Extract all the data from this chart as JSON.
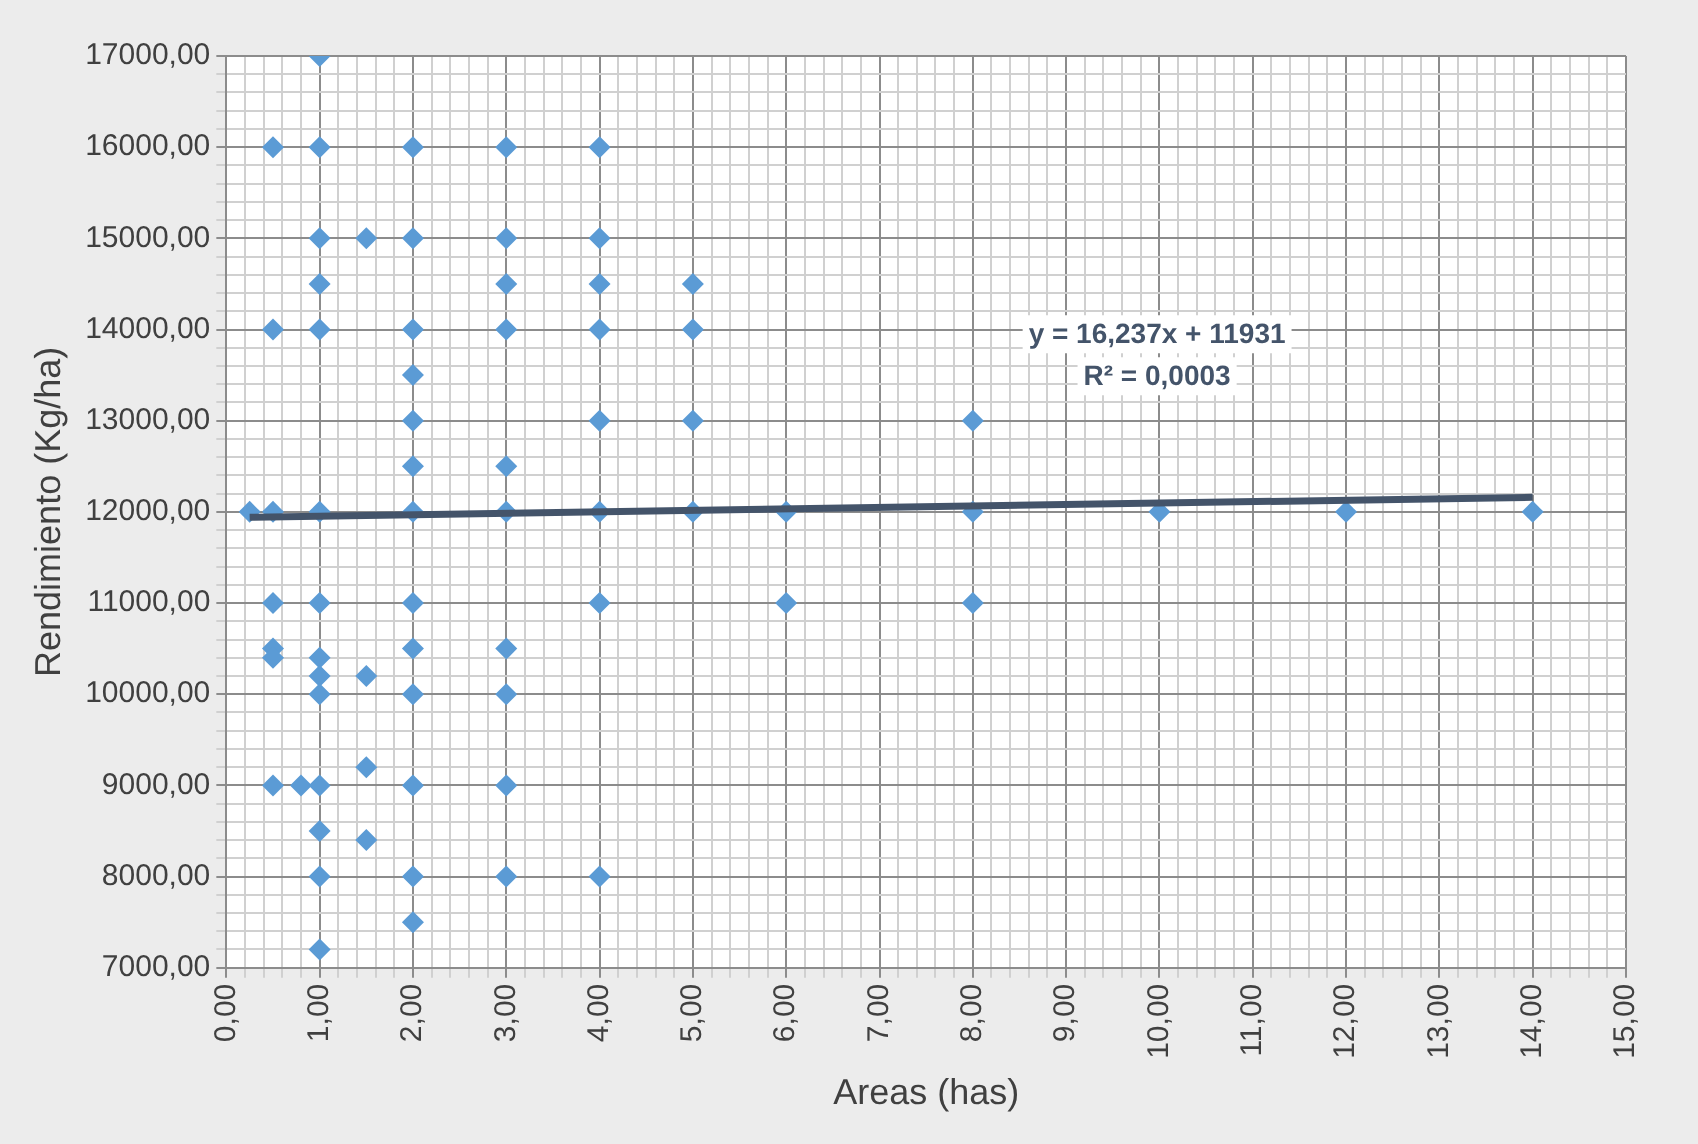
{
  "chart_data": {
    "type": "scatter",
    "xlabel": "Areas (has)",
    "ylabel": "Rendimiento (Kg/ha)",
    "marker": "diamond",
    "grid": true,
    "legend": false,
    "annotations": [
      "y = 16,237x + 11931",
      "R² = 0,0003"
    ],
    "xlim": [
      0,
      15
    ],
    "ylim": [
      7000,
      17000
    ],
    "xticks": [
      {
        "value": 0,
        "label": "0,00"
      },
      {
        "value": 0.2,
        "label": null
      },
      {
        "value": 0.4,
        "label": null
      },
      {
        "value": 0.6,
        "label": null
      },
      {
        "value": 0.8,
        "label": null
      },
      {
        "value": 1,
        "label": "1,00"
      },
      {
        "value": 1.2,
        "label": null
      },
      {
        "value": 1.4,
        "label": null
      },
      {
        "value": 1.6,
        "label": null
      },
      {
        "value": 1.8,
        "label": null
      },
      {
        "value": 2,
        "label": "2,00"
      },
      {
        "value": 2.2,
        "label": null
      },
      {
        "value": 2.4,
        "label": null
      },
      {
        "value": 2.6,
        "label": null
      },
      {
        "value": 2.8,
        "label": null
      },
      {
        "value": 3,
        "label": "3,00"
      },
      {
        "value": 3.2,
        "label": null
      },
      {
        "value": 3.4,
        "label": null
      },
      {
        "value": 3.6,
        "label": null
      },
      {
        "value": 3.8,
        "label": null
      },
      {
        "value": 4,
        "label": "4,00"
      },
      {
        "value": 4.2,
        "label": null
      },
      {
        "value": 4.4,
        "label": null
      },
      {
        "value": 4.6,
        "label": null
      },
      {
        "value": 4.8,
        "label": null
      },
      {
        "value": 5,
        "label": "5,00"
      },
      {
        "value": 5.2,
        "label": null
      },
      {
        "value": 5.4,
        "label": null
      },
      {
        "value": 5.6,
        "label": null
      },
      {
        "value": 5.8,
        "label": null
      },
      {
        "value": 6,
        "label": "6,00"
      },
      {
        "value": 6.2,
        "label": null
      },
      {
        "value": 6.4,
        "label": null
      },
      {
        "value": 6.6,
        "label": null
      },
      {
        "value": 6.8,
        "label": null
      },
      {
        "value": 7,
        "label": "7,00"
      },
      {
        "value": 7.2,
        "label": null
      },
      {
        "value": 7.4,
        "label": null
      },
      {
        "value": 7.6,
        "label": null
      },
      {
        "value": 7.8,
        "label": null
      },
      {
        "value": 8,
        "label": "8,00"
      },
      {
        "value": 8.2,
        "label": null
      },
      {
        "value": 8.4,
        "label": null
      },
      {
        "value": 8.6,
        "label": null
      },
      {
        "value": 8.8,
        "label": null
      },
      {
        "value": 9,
        "label": "9,00"
      },
      {
        "value": 9.2,
        "label": null
      },
      {
        "value": 9.4,
        "label": null
      },
      {
        "value": 9.6,
        "label": null
      },
      {
        "value": 9.8,
        "label": null
      },
      {
        "value": 10,
        "label": "10,00"
      },
      {
        "value": 10.2,
        "label": null
      },
      {
        "value": 10.4,
        "label": null
      },
      {
        "value": 10.6,
        "label": null
      },
      {
        "value": 10.8,
        "label": null
      },
      {
        "value": 11,
        "label": "11,00"
      },
      {
        "value": 11.2,
        "label": null
      },
      {
        "value": 11.4,
        "label": null
      },
      {
        "value": 11.6,
        "label": null
      },
      {
        "value": 11.8,
        "label": null
      },
      {
        "value": 12,
        "label": "12,00"
      },
      {
        "value": 12.2,
        "label": null
      },
      {
        "value": 12.4,
        "label": null
      },
      {
        "value": 12.6,
        "label": null
      },
      {
        "value": 12.8,
        "label": null
      },
      {
        "value": 13,
        "label": "13,00"
      },
      {
        "value": 13.2,
        "label": null
      },
      {
        "value": 13.4,
        "label": null
      },
      {
        "value": 13.6,
        "label": null
      },
      {
        "value": 13.8,
        "label": null
      },
      {
        "value": 14,
        "label": "14,00"
      },
      {
        "value": 14.2,
        "label": null
      },
      {
        "value": 14.4,
        "label": null
      },
      {
        "value": 14.6,
        "label": null
      },
      {
        "value": 14.8,
        "label": null
      },
      {
        "value": 15,
        "label": "15,00"
      }
    ],
    "yticks": [
      {
        "value": 7000,
        "label": "7000,00"
      },
      {
        "value": 7200,
        "label": null
      },
      {
        "value": 7400,
        "label": null
      },
      {
        "value": 7600,
        "label": null
      },
      {
        "value": 7800,
        "label": null
      },
      {
        "value": 8000,
        "label": "8000,00"
      },
      {
        "value": 8200,
        "label": null
      },
      {
        "value": 8400,
        "label": null
      },
      {
        "value": 8600,
        "label": null
      },
      {
        "value": 8800,
        "label": null
      },
      {
        "value": 9000,
        "label": "9000,00"
      },
      {
        "value": 9200,
        "label": null
      },
      {
        "value": 9400,
        "label": null
      },
      {
        "value": 9600,
        "label": null
      },
      {
        "value": 9800,
        "label": null
      },
      {
        "value": 10000,
        "label": "10000,00"
      },
      {
        "value": 10200,
        "label": null
      },
      {
        "value": 10400,
        "label": null
      },
      {
        "value": 10600,
        "label": null
      },
      {
        "value": 10800,
        "label": null
      },
      {
        "value": 11000,
        "label": "11000,00"
      },
      {
        "value": 11200,
        "label": null
      },
      {
        "value": 11400,
        "label": null
      },
      {
        "value": 11600,
        "label": null
      },
      {
        "value": 11800,
        "label": null
      },
      {
        "value": 12000,
        "label": "12000,00"
      },
      {
        "value": 12200,
        "label": null
      },
      {
        "value": 12400,
        "label": null
      },
      {
        "value": 12600,
        "label": null
      },
      {
        "value": 12800,
        "label": null
      },
      {
        "value": 13000,
        "label": "13000,00"
      },
      {
        "value": 13200,
        "label": null
      },
      {
        "value": 13400,
        "label": null
      },
      {
        "value": 13600,
        "label": null
      },
      {
        "value": 13800,
        "label": null
      },
      {
        "value": 14000,
        "label": "14000,00"
      },
      {
        "value": 14200,
        "label": null
      },
      {
        "value": 14400,
        "label": null
      },
      {
        "value": 14600,
        "label": null
      },
      {
        "value": 14800,
        "label": null
      },
      {
        "value": 15000,
        "label": "15000,00"
      },
      {
        "value": 15200,
        "label": null
      },
      {
        "value": 15400,
        "label": null
      },
      {
        "value": 15600,
        "label": null
      },
      {
        "value": 15800,
        "label": null
      },
      {
        "value": 16000,
        "label": "16000,00"
      },
      {
        "value": 16200,
        "label": null
      },
      {
        "value": 16400,
        "label": null
      },
      {
        "value": 16600,
        "label": null
      },
      {
        "value": 16800,
        "label": null
      },
      {
        "value": 17000,
        "label": "17000,00"
      }
    ],
    "series": [
      {
        "color": "#5b9bd5",
        "x": [
          0.25,
          0.5,
          0.5,
          0.5,
          0.5,
          0.5,
          0.5,
          0.5,
          0.8,
          1,
          1,
          1,
          1,
          1,
          1,
          1,
          1,
          1,
          1,
          1,
          1,
          1,
          1,
          1.5,
          1.5,
          1.5,
          1.5,
          2,
          2,
          2,
          2,
          2,
          2,
          2,
          2,
          2,
          2,
          2,
          2,
          2,
          3,
          3,
          3,
          3,
          3,
          3,
          3,
          3,
          3,
          3,
          4,
          4,
          4,
          4,
          4,
          4,
          4,
          4,
          5,
          5,
          5,
          5,
          6,
          6,
          8,
          8,
          8,
          10,
          12,
          14
        ],
        "values": [
          12000,
          16000,
          14000,
          12000,
          11000,
          10500,
          10400,
          9000,
          9000,
          17000,
          16000,
          15000,
          14500,
          14000,
          12000,
          11000,
          10400,
          10200,
          10000,
          9000,
          8500,
          8000,
          7200,
          15000,
          10200,
          9200,
          8400,
          16000,
          15000,
          14000,
          13500,
          13000,
          12500,
          12000,
          11000,
          10500,
          10000,
          9000,
          8000,
          7500,
          16000,
          15000,
          14500,
          14000,
          12500,
          12000,
          10500,
          10000,
          9000,
          8000,
          16000,
          15000,
          14500,
          14000,
          13000,
          12000,
          11000,
          8000,
          14500,
          14000,
          13000,
          12000,
          12000,
          11000,
          13000,
          12000,
          11000,
          12000,
          12000,
          12000
        ]
      },
      {
        "type": "line",
        "color": "#44546a",
        "marker": "none",
        "x": [
          0.25,
          14
        ],
        "values": [
          11940,
          12160
        ]
      }
    ]
  }
}
